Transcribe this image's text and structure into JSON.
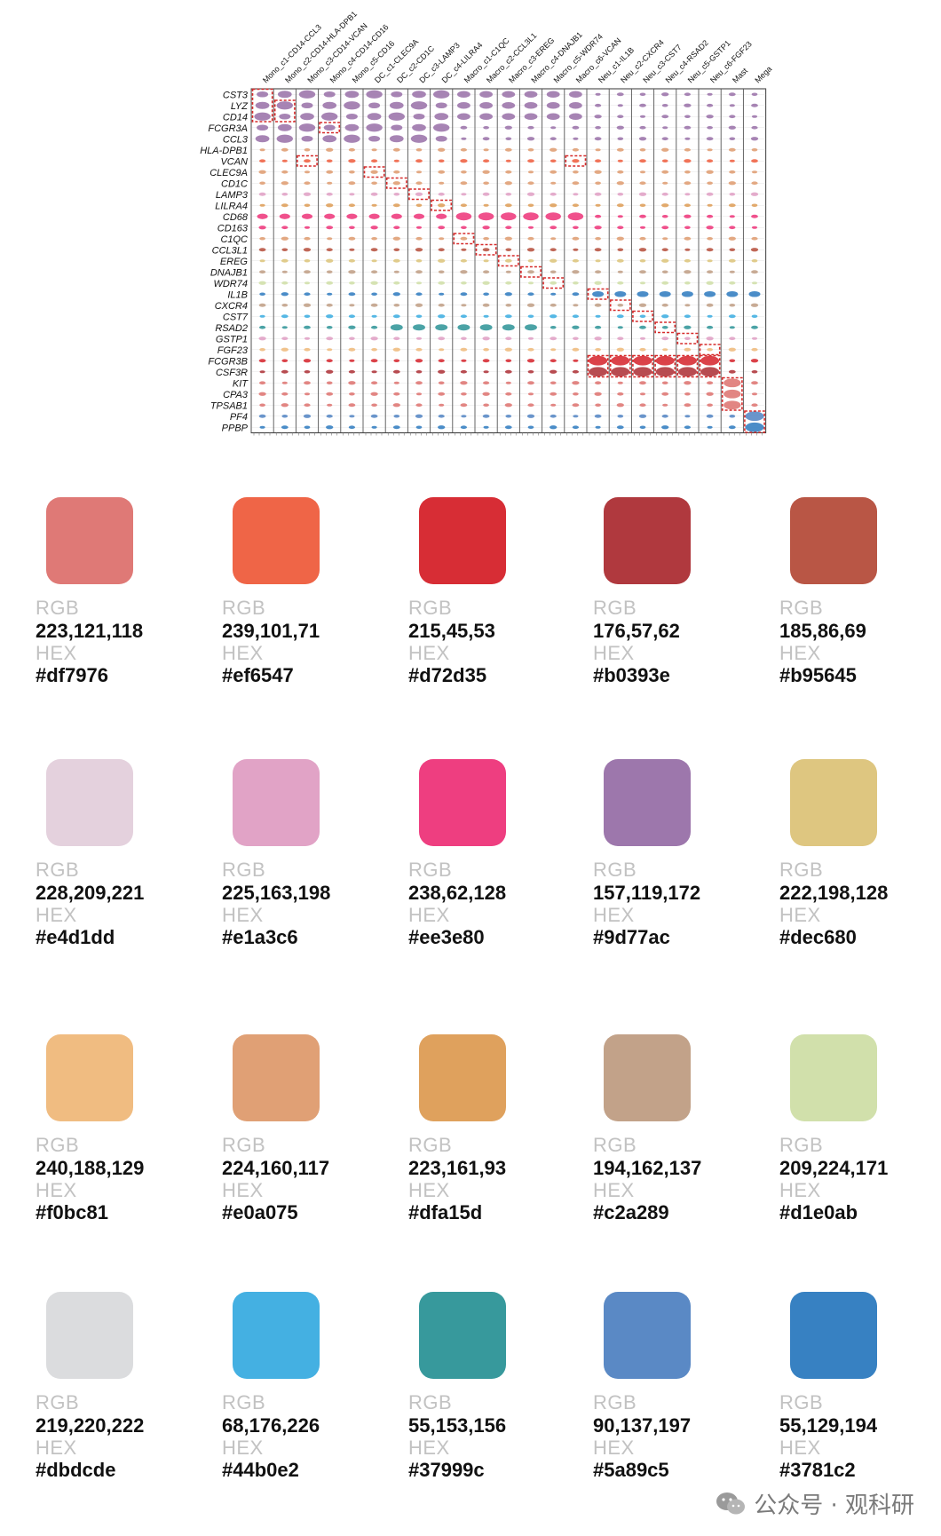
{
  "violin_plot": {
    "genes": [
      "CST3",
      "LYZ",
      "CD14",
      "FCGR3A",
      "CCL3",
      "HLA-DPB1",
      "VCAN",
      "CLEC9A",
      "CD1C",
      "LAMP3",
      "LILRA4",
      "CD68",
      "CD163",
      "C1QC",
      "CCL3L1",
      "EREG",
      "DNAJB1",
      "WDR74",
      "IL1B",
      "CXCR4",
      "CST7",
      "RSAD2",
      "GSTP1",
      "FGF23",
      "FCGR3B",
      "CSF3R",
      "KIT",
      "CPA3",
      "TPSAB1",
      "PF4",
      "PPBP"
    ],
    "clusters": [
      "Mono_c1-CD14-CCL3",
      "Mono_c2-CD14-HLA-DPB1",
      "Mono_c3-CD14-VCAN",
      "Mono_c4-CD14-CD16",
      "Mono_c5-CD16",
      "DC_c1-CLEC9A",
      "DC_c2-CD1C",
      "DC_c3-LAMP3",
      "DC_c4-LILRA4",
      "Macro_c1-C1QC",
      "Macro_c2-CCL3L1",
      "Macro_c3-EREG",
      "Macro_c4-DNAJB1",
      "Macro_c5-WDR74",
      "Macro_c6-VCAN",
      "Neu_c1-IL1B",
      "Neu_c2-CXCR4",
      "Neu_c3-CST7",
      "Neu_c4-RSAD2",
      "Neu_c5-GSTP1",
      "Neu_c6-FGF23",
      "Mast",
      "Mega"
    ]
  },
  "swatch_labels": {
    "rgb": "RGB",
    "hex": "HEX"
  },
  "swatches": [
    {
      "rgb": "223,121,118",
      "hex": "#df7976"
    },
    {
      "rgb": "239,101,71",
      "hex": "#ef6547"
    },
    {
      "rgb": "215,45,53",
      "hex": "#d72d35"
    },
    {
      "rgb": "176,57,62",
      "hex": "#b0393e"
    },
    {
      "rgb": "185,86,69",
      "hex": "#b95645"
    },
    {
      "rgb": "228,209,221",
      "hex": "#e4d1dd"
    },
    {
      "rgb": "225,163,198",
      "hex": "#e1a3c6"
    },
    {
      "rgb": "238,62,128",
      "hex": "#ee3e80"
    },
    {
      "rgb": "157,119,172",
      "hex": "#9d77ac"
    },
    {
      "rgb": "222,198,128",
      "hex": "#dec680"
    },
    {
      "rgb": "240,188,129",
      "hex": "#f0bc81"
    },
    {
      "rgb": "224,160,117",
      "hex": "#e0a075"
    },
    {
      "rgb": "223,161,93",
      "hex": "#dfa15d"
    },
    {
      "rgb": "194,162,137",
      "hex": "#c2a289"
    },
    {
      "rgb": "209,224,171",
      "hex": "#d1e0ab"
    },
    {
      "rgb": "219,220,222",
      "hex": "#dbdcde"
    },
    {
      "rgb": "68,176,226",
      "hex": "#44b0e2"
    },
    {
      "rgb": "55,153,156",
      "hex": "#37999c"
    },
    {
      "rgb": "90,137,197",
      "hex": "#5a89c5"
    },
    {
      "rgb": "55,129,194",
      "hex": "#3781c2"
    }
  ],
  "footer": {
    "text": "公众号 · 观科研"
  }
}
